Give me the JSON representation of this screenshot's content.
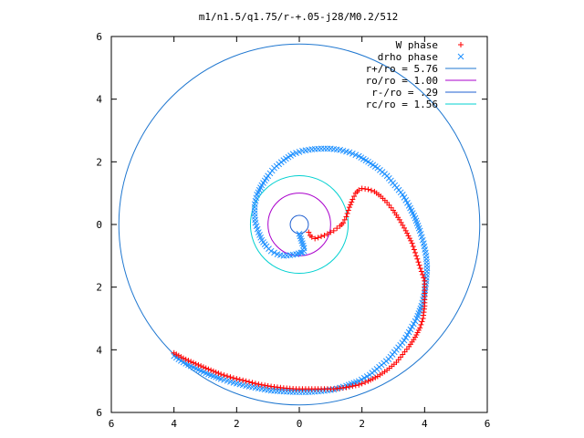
{
  "chart_data": {
    "type": "scatter",
    "title": "m1/n1.5/q1.75/r-+.05-j28/M0.2/512",
    "xlim": [
      -6,
      6
    ],
    "ylim": [
      -6,
      6
    ],
    "x_tick_values": [
      -6,
      -4,
      -2,
      0,
      2,
      4,
      6
    ],
    "y_tick_values": [
      -6,
      -4,
      -2,
      0,
      2,
      4,
      6
    ],
    "x_tick_labels": [
      "6",
      "4",
      "2",
      "0",
      "2",
      "4",
      "6"
    ],
    "y_tick_labels": [
      "6",
      "4",
      "2",
      "0",
      "2",
      "4",
      "6"
    ],
    "grid": false,
    "legend_position": "top-right",
    "circles": [
      {
        "name": "r+/ro = 5.76",
        "radius": 5.76,
        "color": "#1f77d0"
      },
      {
        "name": "ro/ro = 1.00",
        "radius": 1.0,
        "color": "#aa00cc"
      },
      {
        "name": "r-/ro = .29",
        "radius": 0.29,
        "color": "#1f5fd0"
      },
      {
        "name": "rc/ro = 1.56",
        "radius": 1.56,
        "color": "#00d0d0"
      }
    ],
    "series": [
      {
        "name": "W phase",
        "marker": "+",
        "color": "#ff0000",
        "x": [
          0.3,
          0.35,
          0.4,
          0.5,
          0.6,
          0.7,
          0.8,
          0.9,
          1.0,
          1.1,
          1.2,
          1.3,
          1.4,
          1.5,
          1.6,
          1.7,
          1.8,
          1.9,
          2.0,
          2.2,
          2.4,
          2.6,
          2.8,
          3.0,
          3.2,
          3.4,
          3.6,
          3.7,
          3.8,
          3.9,
          4.0,
          4.0,
          4.0,
          3.95,
          3.85,
          3.7,
          3.5,
          3.3,
          3.1,
          2.8,
          2.5,
          2.2,
          1.9,
          1.5,
          1.1,
          0.7,
          0.3,
          -0.1,
          -0.5,
          -0.9,
          -1.3,
          -1.7,
          -2.1,
          -2.5,
          -2.9,
          -3.3,
          -3.7,
          -4.0
        ],
        "y": [
          -0.25,
          -0.35,
          -0.4,
          -0.45,
          -0.42,
          -0.38,
          -0.35,
          -0.3,
          -0.25,
          -0.2,
          -0.12,
          -0.05,
          0.05,
          0.25,
          0.55,
          0.8,
          1.0,
          1.1,
          1.15,
          1.12,
          1.05,
          0.9,
          0.7,
          0.45,
          0.15,
          -0.2,
          -0.6,
          -0.9,
          -1.2,
          -1.5,
          -1.8,
          -2.2,
          -2.6,
          -3.0,
          -3.3,
          -3.6,
          -3.9,
          -4.15,
          -4.4,
          -4.65,
          -4.85,
          -5.0,
          -5.12,
          -5.2,
          -5.25,
          -5.25,
          -5.25,
          -5.25,
          -5.22,
          -5.17,
          -5.1,
          -5.0,
          -4.9,
          -4.78,
          -4.62,
          -4.45,
          -4.27,
          -4.1
        ]
      },
      {
        "name": "drho phase",
        "marker": "x",
        "color": "#1e90ff",
        "x": [
          0.0,
          0.05,
          0.1,
          0.15,
          0.15,
          0.1,
          0.05,
          -0.1,
          -0.3,
          -0.5,
          -0.7,
          -0.9,
          -1.05,
          -1.2,
          -1.3,
          -1.4,
          -1.43,
          -1.42,
          -1.35,
          -1.2,
          -1.0,
          -0.8,
          -0.5,
          -0.2,
          0.1,
          0.4,
          0.7,
          1.0,
          1.3,
          1.6,
          1.9,
          2.2,
          2.5,
          2.8,
          3.05,
          3.3,
          3.5,
          3.7,
          3.85,
          3.97,
          4.05,
          4.08,
          4.05,
          4.0,
          3.9,
          3.75,
          3.55,
          3.35,
          3.1,
          2.85,
          2.55,
          2.25,
          1.9,
          1.5,
          1.1,
          0.7,
          0.3,
          -0.1,
          -0.5,
          -0.9,
          -1.3,
          -1.7,
          -2.1,
          -2.5,
          -2.9,
          -3.3,
          -3.7,
          -4.0
        ],
        "y": [
          -0.3,
          -0.45,
          -0.6,
          -0.75,
          -0.85,
          -0.9,
          -0.9,
          -0.95,
          -0.98,
          -1.0,
          -0.95,
          -0.85,
          -0.7,
          -0.5,
          -0.25,
          0.05,
          0.35,
          0.65,
          0.95,
          1.25,
          1.55,
          1.8,
          2.05,
          2.25,
          2.35,
          2.4,
          2.42,
          2.42,
          2.38,
          2.3,
          2.18,
          2.0,
          1.8,
          1.55,
          1.25,
          0.95,
          0.6,
          0.2,
          -0.2,
          -0.6,
          -1.0,
          -1.4,
          -1.8,
          -2.2,
          -2.6,
          -3.0,
          -3.35,
          -3.7,
          -4.0,
          -4.3,
          -4.55,
          -4.8,
          -5.0,
          -5.15,
          -5.27,
          -5.32,
          -5.35,
          -5.35,
          -5.33,
          -5.3,
          -5.23,
          -5.15,
          -5.05,
          -4.93,
          -4.78,
          -4.6,
          -4.4,
          -4.2
        ]
      }
    ]
  }
}
